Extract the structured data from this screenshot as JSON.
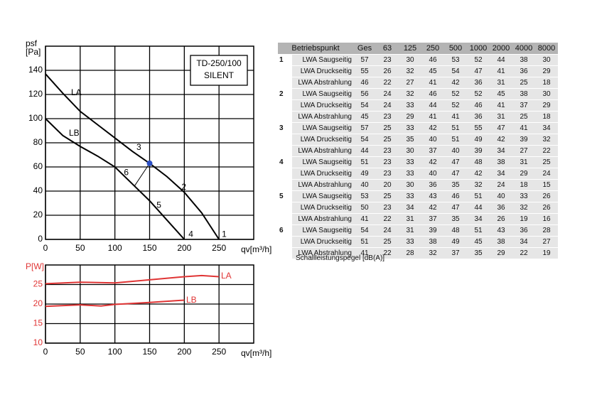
{
  "chart_data": [
    {
      "type": "line",
      "title": "TD-250/100",
      "subtitle": "SILENT",
      "ylabel": "psf",
      "yunit": "[Pa]",
      "xlabel": "qv[m³/h]",
      "xlim": [
        0,
        300
      ],
      "xticks": [
        0,
        50,
        100,
        150,
        200,
        250
      ],
      "ylim": [
        0,
        160
      ],
      "yticks": [
        0,
        20,
        40,
        60,
        80,
        100,
        120,
        140
      ],
      "grid": true,
      "series": [
        {
          "name": "LA",
          "color": "#000000",
          "x": [
            0,
            25,
            50,
            75,
            100,
            125,
            150,
            175,
            200,
            225,
            250
          ],
          "values": [
            137,
            121,
            106,
            95,
            84,
            73,
            63,
            52,
            39,
            22,
            0
          ]
        },
        {
          "name": "LB",
          "color": "#000000",
          "x": [
            0,
            25,
            50,
            75,
            100,
            125,
            150,
            175,
            200
          ],
          "values": [
            100,
            86,
            77,
            69,
            60,
            46,
            32,
            16,
            0
          ]
        }
      ],
      "operating_point": {
        "x": 150,
        "y": 63,
        "color": "#2b4fc4"
      },
      "connector": {
        "x": [
          128,
          150
        ],
        "values": [
          44,
          63
        ]
      },
      "annotations": [
        {
          "text": "1",
          "x": 254,
          "y": 4
        },
        {
          "text": "2",
          "x": 196,
          "y": 43
        },
        {
          "text": "3",
          "x": 131,
          "y": 76
        },
        {
          "text": "4",
          "x": 206,
          "y": 4
        },
        {
          "text": "5",
          "x": 160,
          "y": 28
        },
        {
          "text": "6",
          "x": 113,
          "y": 55
        }
      ]
    },
    {
      "type": "line",
      "ylabel": "P[W]",
      "xlabel": "qv[m³/h]",
      "xlim": [
        0,
        300
      ],
      "xticks": [
        0,
        50,
        100,
        150,
        200,
        250
      ],
      "ylim": [
        10,
        30
      ],
      "yticks": [
        10,
        15,
        20,
        25
      ],
      "grid": true,
      "series": [
        {
          "name": "LA",
          "color": "#e03535",
          "x": [
            0,
            50,
            100,
            150,
            200,
            225,
            250
          ],
          "values": [
            25.2,
            25.6,
            25.4,
            26.2,
            27,
            27.3,
            27
          ]
        },
        {
          "name": "LB",
          "color": "#e03535",
          "x": [
            0,
            50,
            80,
            100,
            150,
            200
          ],
          "values": [
            19.4,
            19.8,
            19.5,
            19.9,
            20.4,
            21
          ]
        }
      ]
    }
  ],
  "table": {
    "header": [
      "Betriebspunkt",
      "Ges",
      "63",
      "125",
      "250",
      "500",
      "1000",
      "2000",
      "4000",
      "8000"
    ],
    "groups": [
      {
        "point": 1,
        "rows": [
          {
            "label": "LWA Saugseitig",
            "values": [
              57,
              23,
              30,
              46,
              53,
              52,
              44,
              38,
              30
            ]
          },
          {
            "label": "LWA Druckseitig",
            "values": [
              55,
              26,
              32,
              45,
              54,
              47,
              41,
              36,
              29
            ]
          },
          {
            "label": "LWA Abstrahlung",
            "values": [
              46,
              22,
              27,
              41,
              42,
              36,
              31,
              25,
              18
            ]
          }
        ]
      },
      {
        "point": 2,
        "rows": [
          {
            "label": "LWA Saugseitig",
            "values": [
              56,
              24,
              32,
              46,
              52,
              52,
              45,
              38,
              30
            ]
          },
          {
            "label": "LWA Druckseitig",
            "values": [
              54,
              24,
              33,
              44,
              52,
              46,
              41,
              37,
              29
            ]
          },
          {
            "label": "LWA Abstrahlung",
            "values": [
              45,
              23,
              29,
              41,
              41,
              36,
              31,
              25,
              18
            ]
          }
        ]
      },
      {
        "point": 3,
        "rows": [
          {
            "label": "LWA Saugseitig",
            "values": [
              57,
              25,
              33,
              42,
              51,
              55,
              47,
              41,
              34
            ]
          },
          {
            "label": "LWA Druckseitig",
            "values": [
              54,
              25,
              35,
              40,
              51,
              49,
              42,
              39,
              32
            ]
          },
          {
            "label": "LWA Abstrahlung",
            "values": [
              44,
              23,
              30,
              37,
              40,
              39,
              34,
              27,
              22
            ]
          }
        ]
      },
      {
        "point": 4,
        "rows": [
          {
            "label": "LWA Saugseitig",
            "values": [
              51,
              23,
              33,
              42,
              47,
              48,
              38,
              31,
              25
            ]
          },
          {
            "label": "LWA Druckseitig",
            "values": [
              49,
              23,
              33,
              40,
              47,
              42,
              34,
              29,
              24
            ]
          },
          {
            "label": "LWA Abstrahlung",
            "values": [
              40,
              20,
              30,
              36,
              35,
              32,
              24,
              18,
              15
            ]
          }
        ]
      },
      {
        "point": 5,
        "rows": [
          {
            "label": "LWA Saugseitig",
            "values": [
              53,
              25,
              33,
              43,
              46,
              51,
              40,
              33,
              26
            ]
          },
          {
            "label": "LWA Druckseitig",
            "values": [
              50,
              23,
              34,
              42,
              47,
              44,
              36,
              32,
              26
            ]
          },
          {
            "label": "LWA Abstrahlung",
            "values": [
              41,
              22,
              31,
              37,
              35,
              34,
              26,
              19,
              16
            ]
          }
        ]
      },
      {
        "point": 6,
        "rows": [
          {
            "label": "LWA Saugseitig",
            "values": [
              54,
              24,
              31,
              39,
              48,
              51,
              43,
              36,
              28
            ]
          },
          {
            "label": "LWA Druckseitig",
            "values": [
              51,
              25,
              33,
              38,
              49,
              45,
              38,
              34,
              27
            ]
          },
          {
            "label": "LWA Abstrahlung",
            "values": [
              41,
              22,
              28,
              32,
              37,
              35,
              29,
              22,
              19
            ]
          }
        ]
      }
    ],
    "footer": "Schallleistungspegel [dB(A)]"
  }
}
